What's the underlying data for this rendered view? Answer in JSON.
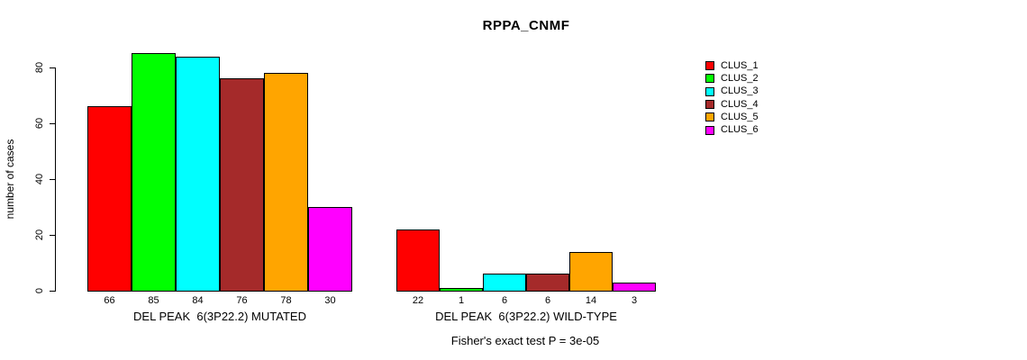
{
  "chart_data": {
    "type": "bar",
    "title": "RPPA_CNMF",
    "ylabel": "number of cases",
    "xlabel": "",
    "ylim": [
      0,
      85
    ],
    "yticks": [
      0,
      20,
      40,
      60,
      80
    ],
    "grid": false,
    "legend_position": "right-outside",
    "bar_value_labels": true,
    "categories": [
      "DEL PEAK  6(3P22.2) MUTATED",
      "DEL PEAK  6(3P22.2) WILD-TYPE"
    ],
    "series": [
      {
        "name": "CLUS_1",
        "color": "#FF0000",
        "values": [
          66,
          22
        ]
      },
      {
        "name": "CLUS_2",
        "color": "#00FF00",
        "values": [
          85,
          1
        ]
      },
      {
        "name": "CLUS_3",
        "color": "#00FFFF",
        "values": [
          84,
          6
        ]
      },
      {
        "name": "CLUS_4",
        "color": "#A52A2A",
        "values": [
          76,
          6
        ]
      },
      {
        "name": "CLUS_5",
        "color": "#FFA500",
        "values": [
          78,
          14
        ]
      },
      {
        "name": "CLUS_6",
        "color": "#FF00FF",
        "values": [
          30,
          3
        ]
      }
    ],
    "annotation": "Fisher's exact test P = 3e-05"
  }
}
